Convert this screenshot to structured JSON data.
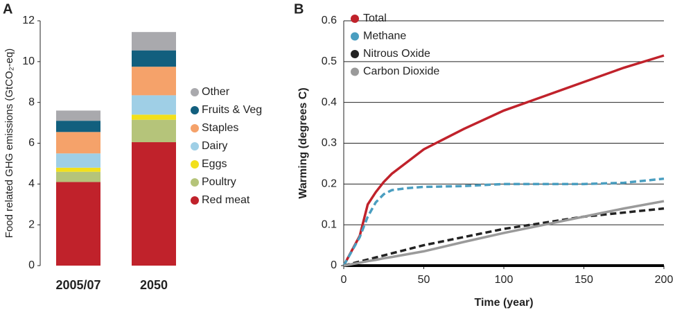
{
  "chart_data": [
    {
      "type": "stacked-bar",
      "panel_label": "A",
      "y_label": "Food related GHG emissions (GtCO₂-eq)",
      "categories": [
        "2005/07",
        "2050"
      ],
      "ylim": [
        0,
        12
      ],
      "yticks": [
        0,
        2,
        4,
        6,
        8,
        10,
        12
      ],
      "series": [
        {
          "name": "Red meat",
          "color": "#c0222b",
          "values": [
            4.1,
            6.05
          ]
        },
        {
          "name": "Poultry",
          "color": "#b5c47a",
          "values": [
            0.5,
            1.1
          ]
        },
        {
          "name": "Eggs",
          "color": "#f2e01b",
          "values": [
            0.2,
            0.25
          ]
        },
        {
          "name": "Dairy",
          "color": "#9fcfe6",
          "values": [
            0.7,
            0.95
          ]
        },
        {
          "name": "Staples",
          "color": "#f5a26a",
          "values": [
            1.05,
            1.4
          ]
        },
        {
          "name": "Fruits & Veg",
          "color": "#125f7e",
          "values": [
            0.55,
            0.8
          ]
        },
        {
          "name": "Other",
          "color": "#a9a9ad",
          "values": [
            0.5,
            0.9
          ]
        }
      ]
    },
    {
      "type": "line",
      "panel_label": "B",
      "x_label": "Time (year)",
      "y_label": "Warming (degrees C)",
      "x": [
        0,
        10,
        15,
        20,
        25,
        30,
        40,
        50,
        75,
        100,
        125,
        150,
        175,
        200
      ],
      "xlim": [
        0,
        200
      ],
      "xticks": [
        0,
        50,
        100,
        150,
        200
      ],
      "ylim": [
        0,
        0.6
      ],
      "yticks": [
        0,
        0.1,
        0.2,
        0.3,
        0.4,
        0.5,
        0.6
      ],
      "grid": true,
      "series": [
        {
          "name": "Total",
          "color": "#c0222b",
          "dashed": false,
          "values": [
            0,
            0.073,
            0.15,
            0.18,
            0.205,
            0.225,
            0.255,
            0.285,
            0.335,
            0.38,
            0.415,
            0.45,
            0.485,
            0.515
          ]
        },
        {
          "name": "Methane",
          "color": "#4a9ec0",
          "dashed": true,
          "values": [
            0,
            0.07,
            0.12,
            0.155,
            0.175,
            0.185,
            0.19,
            0.193,
            0.195,
            0.2,
            0.2,
            0.2,
            0.203,
            0.213
          ]
        },
        {
          "name": "Nitrous Oxide",
          "color": "#222222",
          "dashed": true,
          "values": [
            0,
            0.01,
            0.015,
            0.02,
            0.025,
            0.03,
            0.04,
            0.05,
            0.07,
            0.09,
            0.105,
            0.12,
            0.13,
            0.14
          ]
        },
        {
          "name": "Carbon Dioxide",
          "color": "#9a9a9a",
          "dashed": false,
          "values": [
            0,
            0.007,
            0.011,
            0.014,
            0.018,
            0.021,
            0.028,
            0.035,
            0.058,
            0.08,
            0.1,
            0.12,
            0.14,
            0.158
          ]
        }
      ]
    }
  ]
}
